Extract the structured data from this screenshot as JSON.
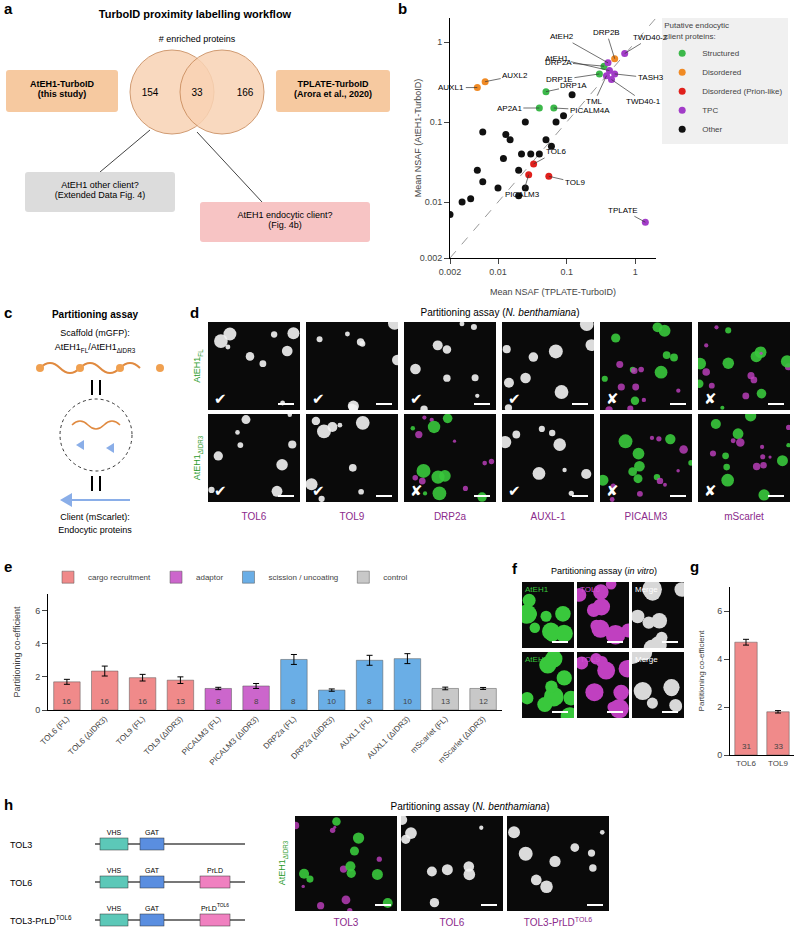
{
  "chart_data": [
    {
      "type": "scatter",
      "title": "b",
      "x_label": "Mean NSAF (TPLATE-TurboID)",
      "y_label": "Mean NSAF (AtEH1-TurboID)",
      "log": true,
      "xlim": [
        0.002,
        2
      ],
      "ylim": [
        0.002,
        2
      ],
      "xticks": [
        0.002,
        0.01,
        0.1,
        1
      ],
      "yticks": [
        0.002,
        0.01,
        0.1,
        1
      ],
      "legend_title": "Putative endocytic\nclient proteins:",
      "series": [
        {
          "name": "Structured",
          "color": "#3cb84a",
          "marker": "circle",
          "x": [
            0.05,
            0.04,
            0.065,
            0.35,
            0.3
          ],
          "values": [
            0.24,
            0.15,
            0.15,
            0.5,
            0.4
          ],
          "labels": [
            "DRP1A",
            "AP2A1",
            "PICALM4A",
            "DRP2A",
            "DRP1E"
          ]
        },
        {
          "name": "Disordered",
          "color": "#f08a24",
          "marker": "circle",
          "x": [
            0.005,
            0.0065,
            0.5
          ],
          "values": [
            0.27,
            0.32,
            0.62
          ],
          "labels": [
            "AUXL1",
            "AUXL2",
            "DRP2B"
          ]
        },
        {
          "name": "Disordered (Prion-like)",
          "color": "#e0201c",
          "marker": "circle",
          "x": [
            0.033,
            0.055,
            0.028
          ],
          "values": [
            0.03,
            0.021,
            0.022
          ],
          "labels": [
            "TOL6",
            "TOL9",
            "PICALM3"
          ]
        },
        {
          "name": "TPC",
          "color": "#a23cc8",
          "marker": "circle",
          "x": [
            0.4,
            0.42,
            0.7,
            0.5,
            0.45,
            0.38,
            1.4
          ],
          "values": [
            0.55,
            0.44,
            0.72,
            0.4,
            0.34,
            0.38,
            0.0056
          ],
          "labels": [
            "AtEH2",
            "AtEH1",
            "TWD40-2",
            "TASH3",
            "TWD40-1",
            "TML",
            "TPLATE"
          ]
        },
        {
          "name": "Other",
          "color": "#111111",
          "marker": "circle",
          "x": [
            0.002,
            0.003,
            0.004,
            0.005,
            0.006,
            0.006,
            0.01,
            0.012,
            0.013,
            0.015,
            0.02,
            0.022,
            0.025,
            0.03,
            0.04,
            0.05,
            0.06,
            0.07,
            0.09,
            0.12,
            0.025,
            0.02
          ],
          "values": [
            0.007,
            0.01,
            0.011,
            0.025,
            0.075,
            0.018,
            0.015,
            0.035,
            0.07,
            0.06,
            0.025,
            0.04,
            0.1,
            0.04,
            0.04,
            0.06,
            0.05,
            0.1,
            0.12,
            0.22,
            0.015,
            0.012
          ],
          "labels": [
            null,
            null,
            null,
            null,
            null,
            null,
            null,
            null,
            null,
            null,
            null,
            null,
            null,
            null,
            null,
            null,
            null,
            null,
            null,
            null,
            null,
            null
          ]
        }
      ]
    },
    {
      "type": "bar",
      "title": "e",
      "y_label": "Partitioning co-efficient",
      "categories": [
        "TOL6 (FL)",
        "TOL6 (ΔIDR3)",
        "TOL9 (FL)",
        "TOL9 (ΔIDR3)",
        "PICALM3 (FL)",
        "PICALM3 (ΔIDR3)",
        "DRP2a (FL)",
        "DRP2a (ΔIDR3)",
        "AUXL1 (FL)",
        "AUXL1 (ΔIDR3)",
        "mScarlet (FL)",
        "mScarlet (ΔIDR3)"
      ],
      "ylim": [
        0,
        7
      ],
      "yticks": [
        0,
        2,
        4,
        6
      ],
      "series": [
        {
          "name": "cargo recruitment",
          "color": "#f08a8a",
          "values": [
            1.7,
            2.35,
            1.95,
            1.8,
            null,
            null,
            null,
            null,
            null,
            null,
            null,
            null
          ],
          "errors": [
            0.15,
            0.3,
            0.2,
            0.2,
            null,
            null,
            null,
            null,
            null,
            null,
            null,
            null
          ],
          "n": [
            16,
            16,
            16,
            13,
            null,
            null,
            null,
            null,
            null,
            null,
            null,
            null
          ]
        },
        {
          "name": "adaptor",
          "color": "#cc66cc",
          "values": [
            null,
            null,
            null,
            null,
            1.3,
            1.45,
            null,
            null,
            null,
            null,
            null,
            null
          ],
          "errors": [
            null,
            null,
            null,
            null,
            0.07,
            0.15,
            null,
            null,
            null,
            null,
            null,
            null
          ],
          "n": [
            null,
            null,
            null,
            null,
            8,
            8,
            null,
            null,
            null,
            null,
            null,
            null
          ]
        },
        {
          "name": "scission / uncoating",
          "color": "#6aaee6",
          "values": [
            null,
            null,
            null,
            null,
            null,
            null,
            3.05,
            1.2,
            3.0,
            3.1,
            null,
            null
          ],
          "errors": [
            null,
            null,
            null,
            null,
            null,
            null,
            0.3,
            0.07,
            0.3,
            0.3,
            null,
            null
          ],
          "n": [
            null,
            null,
            null,
            null,
            null,
            null,
            8,
            10,
            8,
            10,
            null,
            null
          ]
        },
        {
          "name": "control",
          "color": "#c8c8c8",
          "values": [
            null,
            null,
            null,
            null,
            null,
            null,
            null,
            null,
            null,
            null,
            1.3,
            1.3
          ],
          "errors": [
            null,
            null,
            null,
            null,
            null,
            null,
            null,
            null,
            null,
            null,
            0.08,
            0.06
          ],
          "n": [
            null,
            null,
            null,
            null,
            null,
            null,
            null,
            null,
            null,
            null,
            13,
            12
          ]
        }
      ]
    },
    {
      "type": "bar",
      "title": "g",
      "y_label": "Partitioning co-efficient",
      "categories": [
        "TOL6",
        "TOL9"
      ],
      "values": [
        4.7,
        1.8
      ],
      "errors": [
        0.12,
        0.05
      ],
      "n": [
        31,
        33
      ],
      "color": "#f08a8a",
      "ylim": [
        0,
        7
      ],
      "yticks": [
        0,
        2,
        4,
        6
      ]
    }
  ],
  "panels": {
    "a": {
      "letter": "a",
      "title": "TurboID proximity labelling workflow",
      "subtitle": "# enriched proteins",
      "left": "AtEH1-TurboID\n(this study)",
      "right": "TPLATE-TurboID\n(Arora et al., 2020)",
      "counts": [
        154,
        33,
        166
      ],
      "other": "AtEH1 other client?\n(Extended Data Fig. 4)",
      "endocytic": "AtEH1 endocytic client?\n(Fig. 4b)"
    },
    "c": {
      "letter": "c",
      "title": "Partitioning assay",
      "scaffold_label": "Scaffold (mGFP):",
      "scaffold": [
        {
          "t": "AtEH1"
        },
        {
          "t": "FL",
          "sub": true
        },
        {
          "t": "/AtEH1"
        },
        {
          "t": "ΔIDR3",
          "sub": true
        }
      ],
      "client_label": "Client (mScarlet):",
      "client": "Endocytic proteins"
    },
    "d": {
      "letter": "d",
      "title": [
        {
          "t": "Partitioning assay ("
        },
        {
          "t": "N. benthamiana",
          "i": true
        },
        {
          "t": ")"
        }
      ],
      "rows": [
        [
          {
            "t": "AtEH1"
          },
          {
            "t": "FL",
            "sub": true
          }
        ],
        [
          {
            "t": "AtEH1"
          },
          {
            "t": "ΔIDR3",
            "sub": true
          }
        ]
      ],
      "columns": [
        "TOL6",
        "TOL9",
        "DRP2a",
        "AUXL-1",
        "PICALM3",
        "mScarlet"
      ],
      "marks": [
        [
          "✔",
          "✔",
          "✔",
          "✔",
          "✘",
          "✘"
        ],
        [
          "✔",
          "✔",
          "✘",
          "✔",
          "✘",
          "✘"
        ]
      ]
    },
    "f": {
      "letter": "f",
      "title": [
        {
          "t": "Partitioning assay ("
        },
        {
          "t": "in vitro",
          "i": true
        },
        {
          "t": ")"
        }
      ],
      "rows": [
        [
          "AtEH1",
          "TOL6",
          "Merge"
        ],
        [
          "AtEH1",
          "TOL9",
          "Merge"
        ]
      ]
    },
    "h": {
      "letter": "h",
      "title": [
        {
          "t": "Partitioning assay ("
        },
        {
          "t": "N. benthamiana",
          "i": true
        },
        {
          "t": ")"
        }
      ],
      "constructs": [
        {
          "name": "TOL3",
          "domains": [
            "VHS",
            "GAT"
          ]
        },
        {
          "name": "TOL6",
          "domains": [
            "VHS",
            "GAT",
            "PrLD"
          ]
        },
        {
          "name": [
            {
              "t": "TOL3-PrLD"
            },
            {
              "t": "TOL6",
              "sup": true
            }
          ],
          "domains": [
            "VHS",
            "GAT",
            [
              {
                "t": "PrLD"
              },
              {
                "t": "TOL6",
                "sup": true
              }
            ]
          ]
        }
      ],
      "row_label": [
        {
          "t": "AtEH1"
        },
        {
          "t": "ΔIDR3",
          "sub": true
        }
      ],
      "columns": [
        "TOL3",
        "TOL6",
        [
          {
            "t": "TOL3-PrLD"
          },
          {
            "t": "TOL6",
            "sup": true
          }
        ]
      ]
    }
  }
}
